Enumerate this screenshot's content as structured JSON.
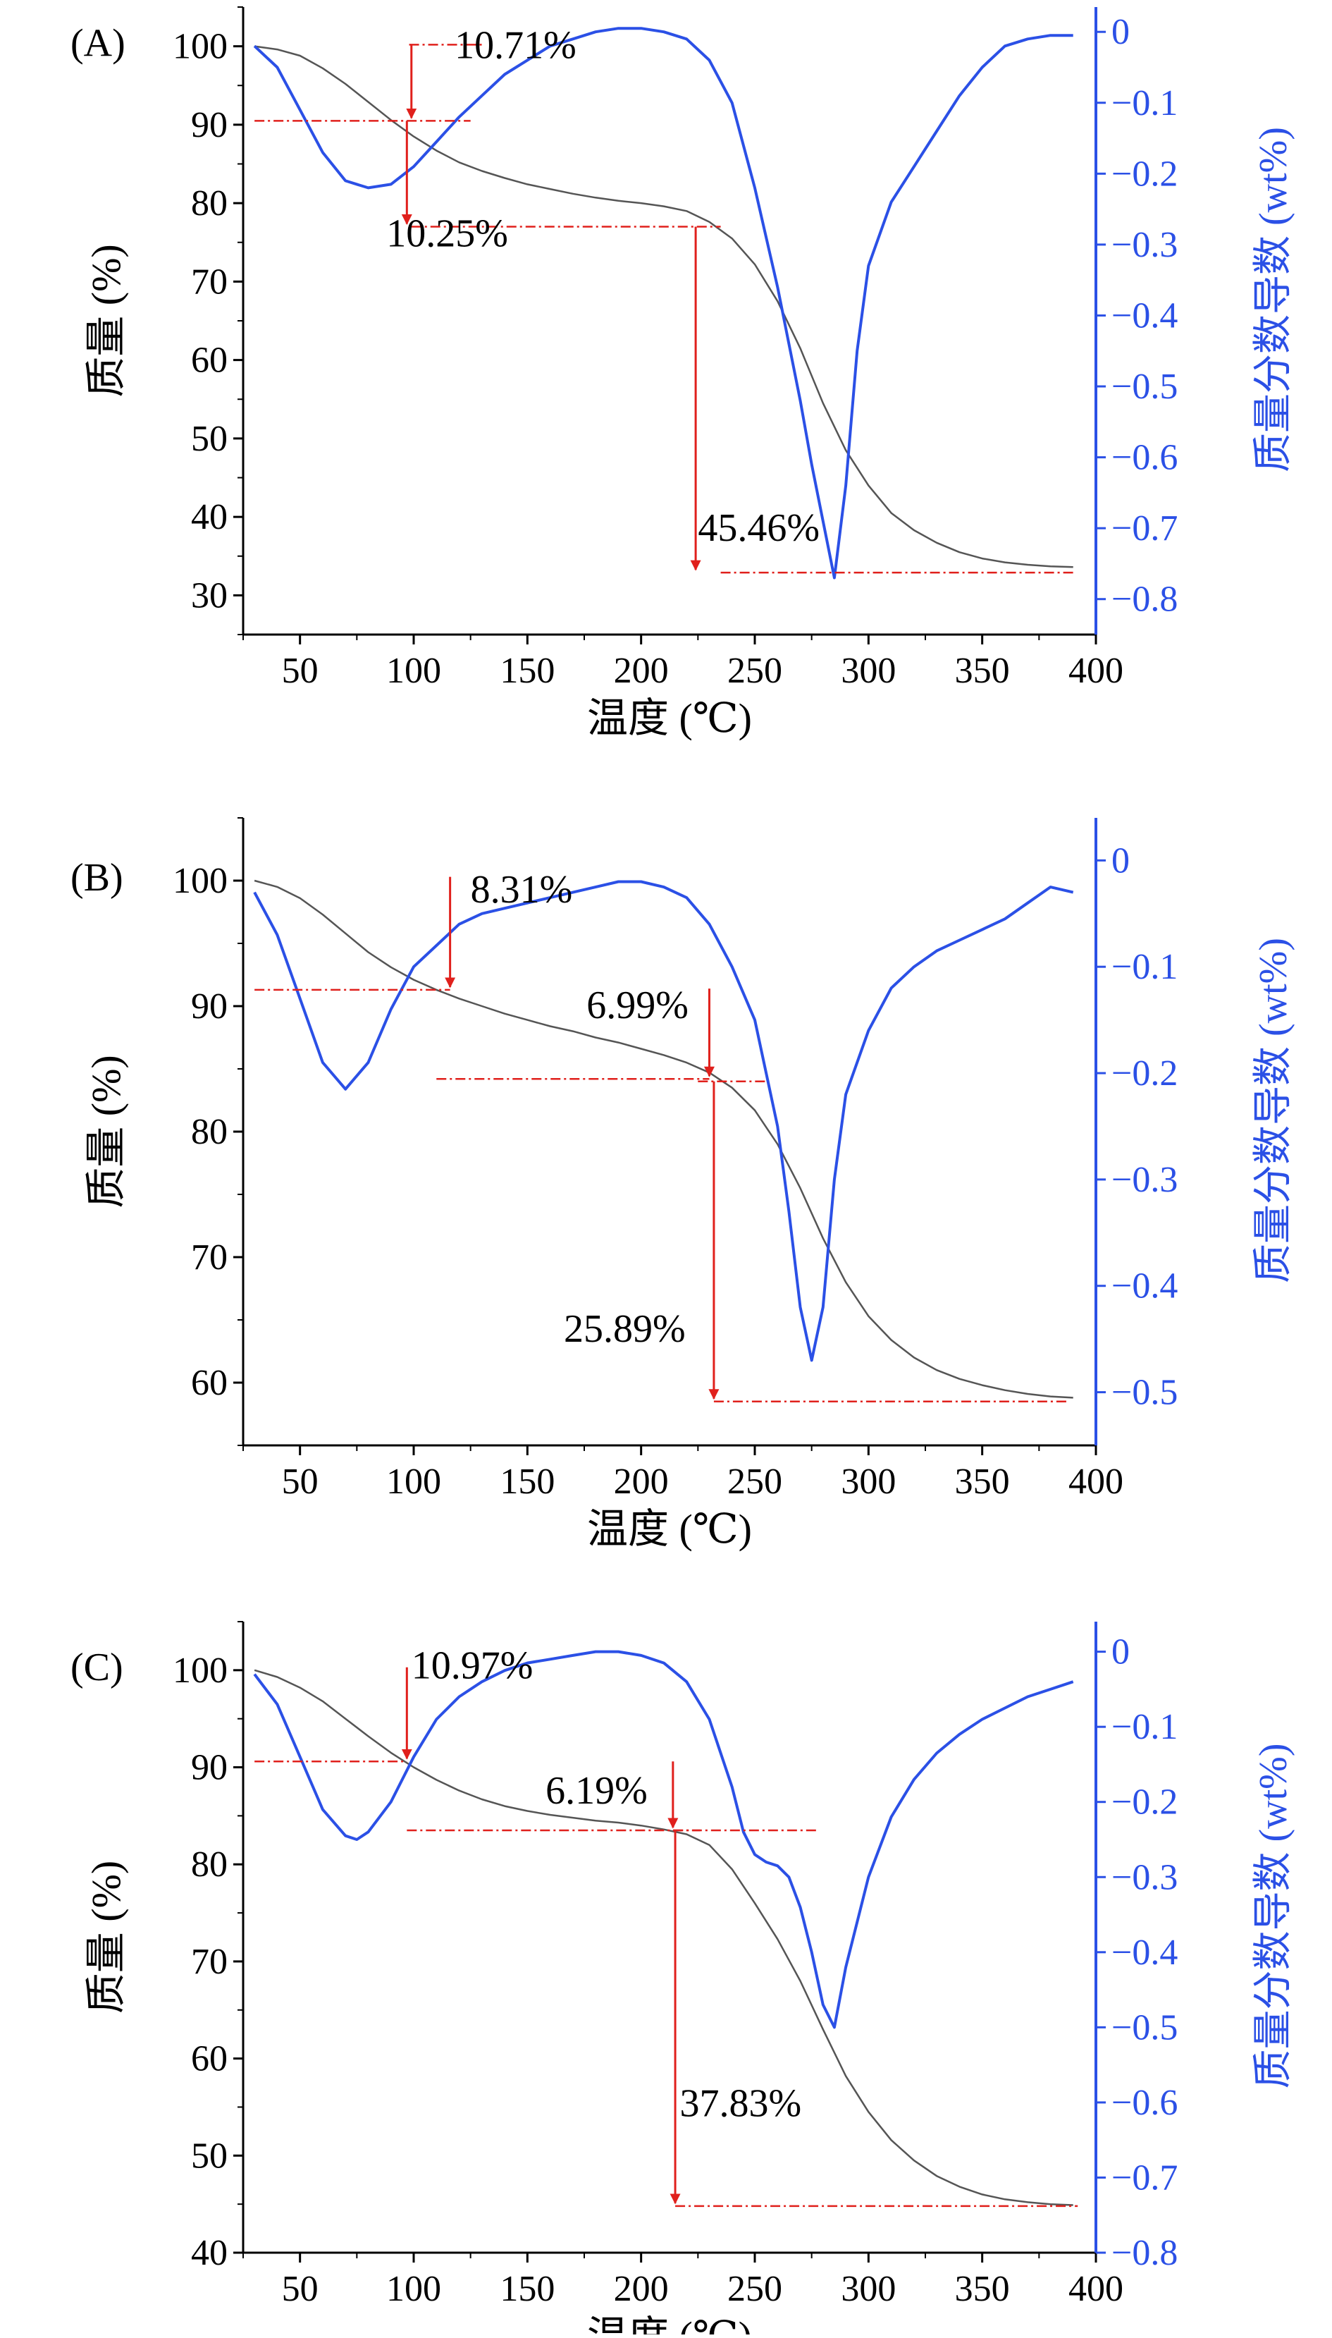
{
  "colors": {
    "mass_curve": "#555555",
    "derivative_curve": "#2b50e6",
    "annotation": "#e0201c",
    "axis_left": "#000000",
    "axis_right": "#2b50e6"
  },
  "chart_data": [
    {
      "type": "line",
      "panel_label": "(A)",
      "xlabel": "温度 (℃)",
      "ylabel": "质量 (%)",
      "y2label": "质量分数导数 (wt%)",
      "xlim": [
        25,
        400
      ],
      "ylim": [
        25,
        105
      ],
      "y2lim": [
        -0.85,
        0.035
      ],
      "xticks": [
        50,
        100,
        150,
        200,
        250,
        300,
        350,
        400
      ],
      "yticks": [
        30,
        40,
        50,
        60,
        70,
        80,
        90,
        100
      ],
      "y2ticks": [
        0,
        -0.1,
        -0.2,
        -0.3,
        -0.4,
        -0.5,
        -0.6,
        -0.7,
        -0.8
      ],
      "series": [
        {
          "name": "质量",
          "axis": "left",
          "x": [
            30,
            40,
            50,
            60,
            70,
            80,
            90,
            100,
            110,
            120,
            130,
            140,
            150,
            160,
            170,
            180,
            190,
            200,
            210,
            220,
            230,
            240,
            250,
            260,
            270,
            280,
            290,
            300,
            310,
            320,
            330,
            340,
            350,
            360,
            370,
            380,
            390
          ],
          "values": [
            100,
            99.6,
            98.8,
            97.2,
            95.2,
            92.9,
            90.6,
            88.5,
            86.7,
            85.2,
            84.1,
            83.2,
            82.4,
            81.8,
            81.2,
            80.7,
            80.3,
            80.0,
            79.6,
            79.0,
            77.6,
            75.5,
            72.2,
            67.5,
            61.5,
            54.5,
            48.5,
            44.0,
            40.5,
            38.3,
            36.7,
            35.5,
            34.7,
            34.2,
            33.9,
            33.7,
            33.6
          ]
        },
        {
          "name": "质量分数导数",
          "axis": "right",
          "x": [
            30,
            40,
            50,
            60,
            70,
            80,
            90,
            100,
            110,
            120,
            130,
            140,
            150,
            160,
            170,
            180,
            190,
            200,
            210,
            220,
            230,
            240,
            250,
            260,
            270,
            275,
            280,
            285,
            290,
            295,
            300,
            310,
            320,
            330,
            340,
            350,
            360,
            370,
            380,
            390
          ],
          "values": [
            -0.02,
            -0.05,
            -0.11,
            -0.17,
            -0.21,
            -0.22,
            -0.215,
            -0.19,
            -0.155,
            -0.12,
            -0.09,
            -0.06,
            -0.04,
            -0.02,
            -0.01,
            0,
            0.005,
            0.005,
            0,
            -0.01,
            -0.04,
            -0.1,
            -0.22,
            -0.36,
            -0.52,
            -0.61,
            -0.69,
            -0.77,
            -0.64,
            -0.45,
            -0.33,
            -0.24,
            -0.19,
            -0.14,
            -0.09,
            -0.05,
            -0.02,
            -0.01,
            -0.005,
            -0.005
          ]
        }
      ],
      "annotations": [
        {
          "text": "10.71%",
          "x": 118,
          "y": 100,
          "ref_y_from": 100.2,
          "ref_y_to": 90.5,
          "arrow_x": 99,
          "ref_x_range": [
            30,
            125
          ],
          "ref2_x_range": [
            98,
            130
          ]
        },
        {
          "text": "10.25%",
          "x": 88,
          "y": 76,
          "ref_y_from": 90.5,
          "ref_y_to": 77.0,
          "arrow_x": 97,
          "ref_x_range": [
            99,
            235
          ]
        },
        {
          "text": "45.46%",
          "x": 225,
          "y": 38.5,
          "ref_y_from": 77.0,
          "ref_y_to": 32.9,
          "arrow_x": 224,
          "ref_x_range": [
            235,
            390
          ]
        }
      ]
    },
    {
      "type": "line",
      "panel_label": "(B)",
      "xlabel": "温度 (℃)",
      "ylabel": "质量 (%)",
      "y2label": "质量分数导数 (wt%)",
      "xlim": [
        25,
        400
      ],
      "ylim": [
        55,
        105
      ],
      "y2lim": [
        -0.55,
        0.04
      ],
      "xticks": [
        50,
        100,
        150,
        200,
        250,
        300,
        350,
        400
      ],
      "yticks": [
        60,
        70,
        80,
        90,
        100
      ],
      "y2ticks": [
        0,
        -0.1,
        -0.2,
        -0.3,
        -0.4,
        -0.5
      ],
      "series": [
        {
          "name": "质量",
          "axis": "left",
          "x": [
            30,
            40,
            50,
            60,
            70,
            80,
            90,
            100,
            110,
            120,
            130,
            140,
            150,
            160,
            170,
            180,
            190,
            200,
            210,
            220,
            230,
            240,
            250,
            260,
            270,
            280,
            290,
            300,
            310,
            320,
            330,
            340,
            350,
            360,
            370,
            380,
            390
          ],
          "values": [
            100,
            99.5,
            98.6,
            97.3,
            95.8,
            94.3,
            93.1,
            92.1,
            91.3,
            90.6,
            90.0,
            89.4,
            88.9,
            88.4,
            88.0,
            87.5,
            87.1,
            86.6,
            86.1,
            85.5,
            84.7,
            83.5,
            81.7,
            79.0,
            75.5,
            71.5,
            68.0,
            65.3,
            63.4,
            62.0,
            61.0,
            60.3,
            59.8,
            59.4,
            59.1,
            58.9,
            58.8
          ]
        },
        {
          "name": "质量分数导数",
          "axis": "right",
          "x": [
            30,
            40,
            50,
            60,
            70,
            80,
            90,
            100,
            110,
            120,
            130,
            140,
            150,
            160,
            170,
            180,
            190,
            200,
            210,
            220,
            230,
            240,
            250,
            260,
            265,
            270,
            275,
            280,
            285,
            290,
            300,
            310,
            320,
            330,
            340,
            350,
            360,
            370,
            380,
            390
          ],
          "values": [
            -0.03,
            -0.07,
            -0.13,
            -0.19,
            -0.215,
            -0.19,
            -0.14,
            -0.1,
            -0.08,
            -0.06,
            -0.05,
            -0.045,
            -0.04,
            -0.035,
            -0.03,
            -0.025,
            -0.02,
            -0.02,
            -0.025,
            -0.035,
            -0.06,
            -0.1,
            -0.15,
            -0.25,
            -0.33,
            -0.42,
            -0.47,
            -0.42,
            -0.3,
            -0.22,
            -0.16,
            -0.12,
            -0.1,
            -0.085,
            -0.075,
            -0.065,
            -0.055,
            -0.04,
            -0.025,
            -0.03
          ]
        }
      ],
      "annotations": [
        {
          "text": "8.31%",
          "x": 125,
          "y": 99.2,
          "ref_y_from": 100.3,
          "ref_y_to": 91.3,
          "arrow_x": 116,
          "ref_x_range": [
            30,
            116
          ]
        },
        {
          "text": "6.99%",
          "x": 176,
          "y": 90.0,
          "ref_y_from": 91.4,
          "ref_y_to": 84.2,
          "arrow_x": 230,
          "ref_x_range": [
            110,
            230
          ]
        },
        {
          "text": "25.89%",
          "x": 166,
          "y": 64.2,
          "ref_y_from": 84.0,
          "ref_y_to": 58.5,
          "arrow_x": 232,
          "ref_x_range": [
            232,
            388
          ],
          "ref2_x_range": [
            225,
            256
          ]
        }
      ]
    },
    {
      "type": "line",
      "panel_label": "(C)",
      "xlabel": "温度 (℃)",
      "ylabel": "质量 (%)",
      "y2label": "质量分数导数 (wt%)",
      "xlim": [
        25,
        400
      ],
      "ylim": [
        40,
        105
      ],
      "y2lim": [
        -0.8,
        0.04
      ],
      "xticks": [
        50,
        100,
        150,
        200,
        250,
        300,
        350,
        400
      ],
      "yticks": [
        40,
        50,
        60,
        70,
        80,
        90,
        100
      ],
      "y2ticks": [
        0,
        -0.1,
        -0.2,
        -0.3,
        -0.4,
        -0.5,
        -0.6,
        -0.7,
        -0.8
      ],
      "series": [
        {
          "name": "质量",
          "axis": "left",
          "x": [
            30,
            40,
            50,
            60,
            70,
            80,
            90,
            100,
            110,
            120,
            130,
            140,
            150,
            160,
            170,
            180,
            190,
            200,
            210,
            220,
            230,
            240,
            250,
            260,
            270,
            280,
            290,
            300,
            310,
            320,
            330,
            340,
            350,
            360,
            370,
            380,
            390
          ],
          "values": [
            100,
            99.3,
            98.2,
            96.8,
            95.0,
            93.2,
            91.5,
            90.0,
            88.7,
            87.6,
            86.7,
            86.0,
            85.5,
            85.1,
            84.8,
            84.5,
            84.3,
            84.0,
            83.6,
            83.1,
            82.0,
            79.5,
            76.0,
            72.3,
            68.0,
            63.0,
            58.2,
            54.5,
            51.6,
            49.5,
            47.9,
            46.8,
            46.0,
            45.5,
            45.2,
            45.0,
            44.9
          ]
        },
        {
          "name": "质量分数导数",
          "axis": "right",
          "x": [
            30,
            40,
            50,
            60,
            70,
            75,
            80,
            90,
            100,
            110,
            120,
            130,
            140,
            150,
            160,
            170,
            180,
            190,
            200,
            210,
            220,
            230,
            240,
            245,
            250,
            255,
            260,
            265,
            270,
            275,
            280,
            285,
            290,
            300,
            310,
            320,
            330,
            340,
            350,
            360,
            370,
            380,
            390
          ],
          "values": [
            -0.03,
            -0.07,
            -0.14,
            -0.21,
            -0.245,
            -0.25,
            -0.24,
            -0.2,
            -0.14,
            -0.09,
            -0.06,
            -0.04,
            -0.025,
            -0.015,
            -0.01,
            -0.005,
            0,
            0,
            -0.005,
            -0.015,
            -0.04,
            -0.09,
            -0.18,
            -0.24,
            -0.27,
            -0.28,
            -0.285,
            -0.3,
            -0.34,
            -0.4,
            -0.47,
            -0.5,
            -0.42,
            -0.3,
            -0.22,
            -0.17,
            -0.135,
            -0.11,
            -0.09,
            -0.075,
            -0.06,
            -0.05,
            -0.04
          ]
        }
      ],
      "annotations": [
        {
          "text": "10.97%",
          "x": 99,
          "y": 100.4,
          "ref_y_from": 100.3,
          "ref_y_to": 90.6,
          "arrow_x": 97,
          "ref_x_range": [
            30,
            97
          ]
        },
        {
          "text": "6.19%",
          "x": 158,
          "y": 87.5,
          "ref_y_from": 90.6,
          "ref_y_to": 83.5,
          "arrow_x": 214,
          "ref_x_range": [
            97,
            226
          ]
        },
        {
          "text": "37.83%",
          "x": 217,
          "y": 55.3,
          "ref_y_from": 83.5,
          "ref_y_to": 44.8,
          "arrow_x": 215,
          "ref_x_range": [
            215,
            392
          ],
          "ref2_x_range": [
            214,
            278
          ]
        }
      ]
    }
  ]
}
